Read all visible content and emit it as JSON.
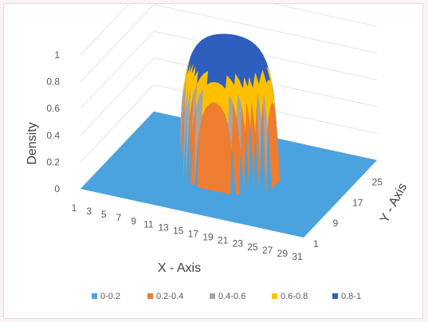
{
  "chart_data": {
    "type": "surface",
    "title": "",
    "zlabel": "Density",
    "xlabel": "X - Axis",
    "ylabel": "Y - Axis",
    "zlim": [
      0,
      1
    ],
    "z_ticks": [
      "0",
      "0.2",
      "0.4",
      "0.6",
      "0.8",
      "1"
    ],
    "x_ticks": [
      "1",
      "3",
      "5",
      "7",
      "9",
      "11",
      "13",
      "15",
      "17",
      "19",
      "21",
      "23",
      "25",
      "27",
      "29",
      "31"
    ],
    "y_ticks": [
      "1",
      "9",
      "17",
      "25"
    ],
    "grid": true,
    "legend_position": "bottom",
    "legend": [
      {
        "label": "0-0.2",
        "color": "#4aa3df"
      },
      {
        "label": "0.2-0.4",
        "color": "#ed7d31"
      },
      {
        "label": "0.4-0.6",
        "color": "#a5a5a5"
      },
      {
        "label": "0.6-0.8",
        "color": "#ffc000"
      },
      {
        "label": "0.8-1",
        "color": "#2e5fbf"
      }
    ],
    "surface": {
      "x_range": [
        1,
        31
      ],
      "y_range": [
        1,
        31
      ],
      "peak_center": [
        16,
        16
      ],
      "peak_height": 1,
      "description_shape": "flat-topped bump"
    }
  }
}
